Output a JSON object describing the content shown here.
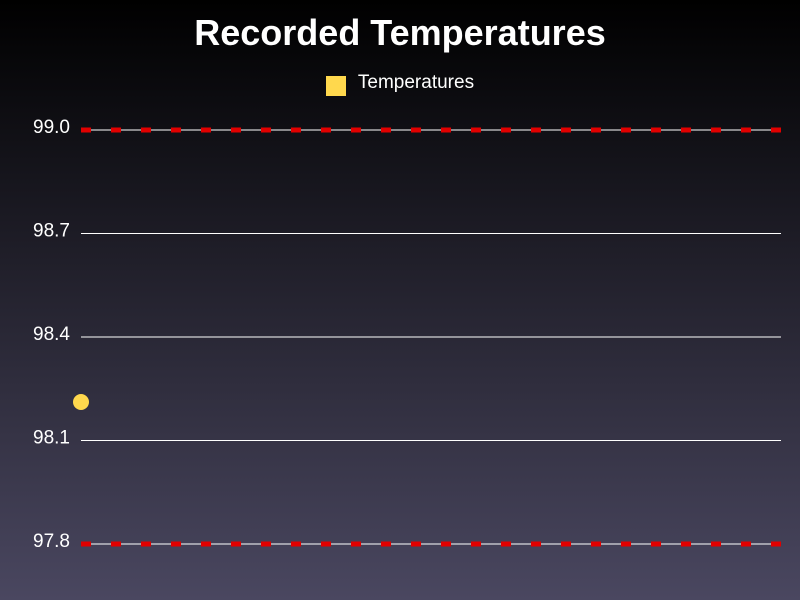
{
  "chart_data": {
    "type": "scatter",
    "title": "Recorded Temperatures",
    "xlabel": "",
    "ylabel": "",
    "ylim": [
      97.8,
      99.0
    ],
    "y_ticks": [
      "97.8",
      "98.1",
      "98.4",
      "98.7",
      "99.0"
    ],
    "grid": true,
    "legend_placement": "top-center",
    "series": [
      {
        "name": "Temperatures",
        "color": "#ffd84d",
        "points": [
          {
            "x": 0,
            "y": 98.2
          }
        ]
      }
    ],
    "reference_lines": [
      {
        "y": 99.0,
        "style": "dashed",
        "color": "#e00000"
      },
      {
        "y": 97.8,
        "style": "dashed",
        "color": "#e00000"
      }
    ]
  },
  "colors": {
    "grid": "#ffffff",
    "text": "#ffffff"
  }
}
